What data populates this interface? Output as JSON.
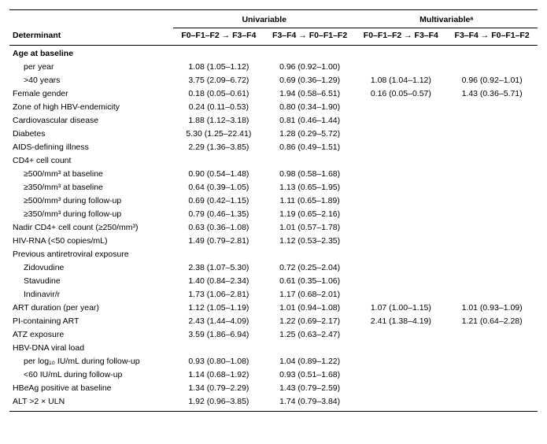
{
  "header": {
    "determinant": "Determinant",
    "groups": {
      "univariable": "Univariable",
      "multivariable": "Multivariableᵃ"
    },
    "columns": {
      "prog": "F0–F1–F2 → F3–F4",
      "regr": "F3–F4 → F0–F1–F2"
    }
  },
  "sections": [
    {
      "title": "Age at baseline",
      "rows": [
        {
          "label": "per year",
          "uni_prog": "1.08 (1.05–1.12)",
          "uni_regr": "0.96 (0.92–1.00)",
          "mv_prog": "",
          "mv_regr": ""
        },
        {
          "label": ">40 years",
          "uni_prog": "3.75 (2.09–6.72)",
          "uni_regr": "0.69 (0.36–1.29)",
          "mv_prog": "1.08 (1.04–1.12)",
          "mv_regr": "0.96 (0.92–1.01)"
        }
      ]
    }
  ],
  "rows": [
    {
      "label": "Female gender",
      "uni_prog": "0.18 (0.05–0.61)",
      "uni_regr": "1.94 (0.58–6.51)",
      "mv_prog": "0.16 (0.05–0.57)",
      "mv_regr": "1.43 (0.36–5.71)",
      "indent": false
    },
    {
      "label": "Zone of high HBV-endemicity",
      "uni_prog": "0.24 (0.11–0.53)",
      "uni_regr": "0.80 (0.34–1.90)",
      "mv_prog": "",
      "mv_regr": "",
      "indent": false
    },
    {
      "label": "Cardiovascular disease",
      "uni_prog": "1.88 (1.12–3.18)",
      "uni_regr": "0.81 (0.46–1.44)",
      "mv_prog": "",
      "mv_regr": "",
      "indent": false
    },
    {
      "label": "Diabetes",
      "uni_prog": "5.30 (1.25–22.41)",
      "uni_regr": "1.28 (0.29–5.72)",
      "mv_prog": "",
      "mv_regr": "",
      "indent": false
    },
    {
      "label": "AIDS-defining illness",
      "uni_prog": "2.29 (1.36–3.85)",
      "uni_regr": "0.86 (0.49–1.51)",
      "mv_prog": "",
      "mv_regr": "",
      "indent": false
    },
    {
      "label": "CD4+ cell count",
      "uni_prog": "",
      "uni_regr": "",
      "mv_prog": "",
      "mv_regr": "",
      "indent": false,
      "is_header": true
    },
    {
      "label": "≥500/mm³ at baseline",
      "uni_prog": "0.90 (0.54–1.48)",
      "uni_regr": "0.98 (0.58–1.68)",
      "mv_prog": "",
      "mv_regr": "",
      "indent": true
    },
    {
      "label": "≥350/mm³ at baseline",
      "uni_prog": "0.64 (0.39–1.05)",
      "uni_regr": "1.13 (0.65–1.95)",
      "mv_prog": "",
      "mv_regr": "",
      "indent": true
    },
    {
      "label": "≥500/mm³ during follow-up",
      "uni_prog": "0.69 (0.42–1.15)",
      "uni_regr": "1.11 (0.65–1.89)",
      "mv_prog": "",
      "mv_regr": "",
      "indent": true
    },
    {
      "label": "≥350/mm³ during follow-up",
      "uni_prog": "0.79 (0.46–1.35)",
      "uni_regr": "1.19 (0.65–2.16)",
      "mv_prog": "",
      "mv_regr": "",
      "indent": true
    },
    {
      "label": "Nadir CD4+ cell count (≥250/mm³)",
      "uni_prog": "0.63 (0.36–1.08)",
      "uni_regr": "1.01 (0.57–1.78)",
      "mv_prog": "",
      "mv_regr": "",
      "indent": false
    },
    {
      "label": "HIV-RNA (<50 copies/mL)",
      "uni_prog": "1.49 (0.79–2.81)",
      "uni_regr": "1.12 (0.53–2.35)",
      "mv_prog": "",
      "mv_regr": "",
      "indent": false
    },
    {
      "label": "Previous antiretroviral exposure",
      "uni_prog": "",
      "uni_regr": "",
      "mv_prog": "",
      "mv_regr": "",
      "indent": false,
      "is_header": true
    },
    {
      "label": "Zidovudine",
      "uni_prog": "2.38 (1.07–5.30)",
      "uni_regr": "0.72 (0.25–2.04)",
      "mv_prog": "",
      "mv_regr": "",
      "indent": true
    },
    {
      "label": "Stavudine",
      "uni_prog": "1.40 (0.84–2.34)",
      "uni_regr": "0.61 (0.35–1.06)",
      "mv_prog": "",
      "mv_regr": "",
      "indent": true
    },
    {
      "label": "Indinavir/r",
      "uni_prog": "1.73 (1.06–2.81)",
      "uni_regr": "1.17 (0.68–2.01)",
      "mv_prog": "",
      "mv_regr": "",
      "indent": true
    },
    {
      "label": "ART duration (per year)",
      "uni_prog": "1.12 (1.05–1.19)",
      "uni_regr": "1.01 (0.94–1.08)",
      "mv_prog": "1.07 (1.00–1.15)",
      "mv_regr": "1.01 (0.93–1.09)",
      "indent": false
    },
    {
      "label": "PI-containing ART",
      "uni_prog": "2.43 (1.44–4.09)",
      "uni_regr": "1.22 (0.69–2.17)",
      "mv_prog": "2.41 (1.38–4.19)",
      "mv_regr": "1.21 (0.64–2.28)",
      "indent": false
    },
    {
      "label": "ATZ exposure",
      "uni_prog": "3.59 (1.86–6.94)",
      "uni_regr": "1.25 (0.63–2.47)",
      "mv_prog": "",
      "mv_regr": "",
      "indent": false
    },
    {
      "label": "HBV-DNA viral load",
      "uni_prog": "",
      "uni_regr": "",
      "mv_prog": "",
      "mv_regr": "",
      "indent": false,
      "is_header": true
    },
    {
      "label": "per log₁₀ IU/mL during follow-up",
      "uni_prog": "0.93 (0.80–1.08)",
      "uni_regr": "1.04 (0.89–1.22)",
      "mv_prog": "",
      "mv_regr": "",
      "indent": true
    },
    {
      "label": "<60 IU/mL during follow-up",
      "uni_prog": "1.14 (0.68–1.92)",
      "uni_regr": "0.93 (0.51–1.68)",
      "mv_prog": "",
      "mv_regr": "",
      "indent": true
    },
    {
      "label": "HBeAg positive at baseline",
      "uni_prog": "1.34 (0.79–2.29)",
      "uni_regr": "1.43 (0.79–2.59)",
      "mv_prog": "",
      "mv_regr": "",
      "indent": false
    },
    {
      "label": "ALT >2 × ULN",
      "uni_prog": "1.92 (0.96–3.85)",
      "uni_regr": "1.74 (0.79–3.84)",
      "mv_prog": "",
      "mv_regr": "",
      "indent": false
    }
  ]
}
